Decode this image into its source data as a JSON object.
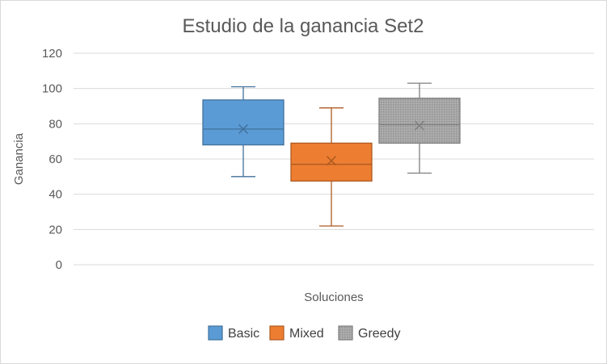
{
  "chart_data": {
    "type": "box",
    "title": "Estudio de la ganancia Set2",
    "xlabel": "Soluciones",
    "ylabel": "Ganancia",
    "ylim": [
      0,
      120
    ],
    "yticks": [
      0,
      20,
      40,
      60,
      80,
      100,
      120
    ],
    "grid": true,
    "legend_position": "bottom",
    "series": [
      {
        "name": "Basic",
        "min": 50,
        "q1": 68,
        "median": 77,
        "q3": 93.5,
        "max": 101,
        "mean": 77,
        "color": "#5B9BD5",
        "edge": "#41719C"
      },
      {
        "name": "Mixed",
        "min": 22,
        "q1": 47.5,
        "median": 57,
        "q3": 69,
        "max": 89,
        "mean": 59,
        "color": "#ED7D31",
        "edge": "#AE5A21"
      },
      {
        "name": "Greedy",
        "min": 52,
        "q1": 69,
        "median": 79.5,
        "q3": 94.5,
        "max": 103,
        "mean": 79,
        "color": "#A5A5A5",
        "edge": "#7F7F7F"
      }
    ]
  }
}
